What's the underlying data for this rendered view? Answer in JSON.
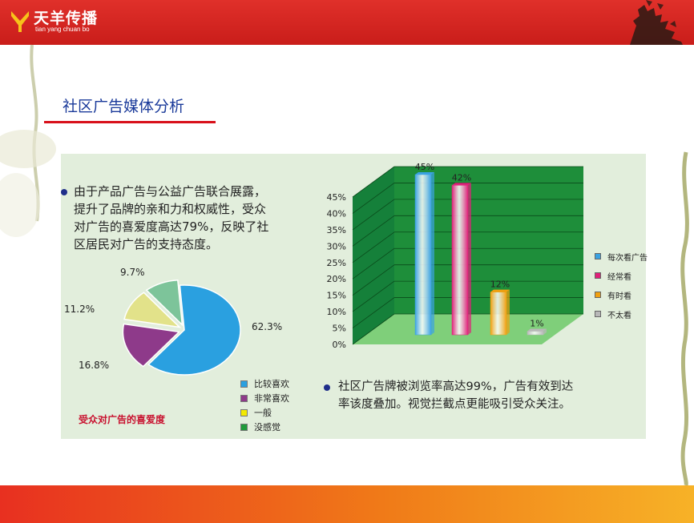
{
  "brand": {
    "name_cn": "天羊传播",
    "name_en": "tian yang chuan bo"
  },
  "page_title": "社区广告媒体分析",
  "text_block_1": [
    "由于产品广告与公益广告联合展露，",
    "提升了品牌的亲和力和权威性，受众",
    "对广告的喜爱度高达79%，反映了社",
    "区居民对广告的支持态度。"
  ],
  "text_block_2": [
    "社区广告牌被浏览率高达99%，广告有效到达",
    "率该度叠加。视觉拦截点更能吸引受众关注。"
  ],
  "chart_data": [
    {
      "type": "pie",
      "title": "受众对广告的喜爱度",
      "slices": [
        {
          "name": "比较喜欢",
          "value": 62.3,
          "label": "62.3%",
          "color": "#2aa0e0"
        },
        {
          "name": "非常喜欢",
          "value": 16.8,
          "label": "16.8%",
          "color": "#8e3a8a"
        },
        {
          "name": "一般",
          "value": 11.2,
          "label": "11.2%",
          "color": "#e2e28a"
        },
        {
          "name": "没感觉",
          "value": 9.7,
          "label": "9.7%",
          "color": "#7dc49a"
        }
      ],
      "legend": [
        {
          "name": "比较喜欢",
          "color": "#2aa0e0"
        },
        {
          "name": "非常喜欢",
          "color": "#8e3a8a"
        },
        {
          "name": "一般",
          "color": "#f2ea00"
        },
        {
          "name": "没感觉",
          "color": "#1f9a3a"
        }
      ],
      "legend_position": "bottom-right"
    },
    {
      "type": "bar",
      "categories": [
        "每次看广告",
        "经常看",
        "有时看",
        "不太看"
      ],
      "values": [
        45,
        42,
        12,
        1
      ],
      "value_labels": [
        "45%",
        "42%",
        "12%",
        "1%"
      ],
      "colors": [
        "#3aa2e2",
        "#e0217a",
        "#f0a010",
        "#b8b8b8"
      ],
      "yticks": [
        "0%",
        "5%",
        "10%",
        "15%",
        "20%",
        "25%",
        "30%",
        "35%",
        "40%",
        "45%"
      ],
      "ylim": [
        0,
        45
      ],
      "grid": true,
      "background_color": "#1e8e3a",
      "legend_position": "right"
    }
  ]
}
